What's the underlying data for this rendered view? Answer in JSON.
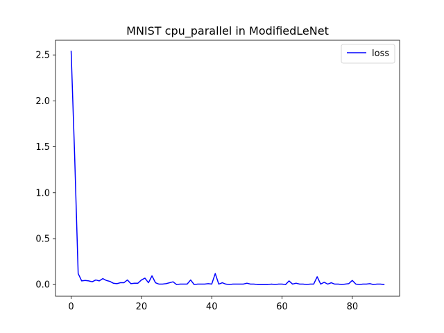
{
  "chart_data": {
    "type": "line",
    "title": "MNIST cpu_parallel in ModifiedLeNet",
    "xlabel": "",
    "ylabel": "",
    "xlim": [
      -4.45,
      93.45
    ],
    "ylim": [
      -0.127,
      2.66
    ],
    "xticks": [
      0,
      20,
      40,
      60,
      80
    ],
    "yticks": [
      0.0,
      0.5,
      1.0,
      1.5,
      2.0,
      2.5
    ],
    "ytick_labels": [
      "0.0",
      "0.5",
      "1.0",
      "1.5",
      "2.0",
      "2.5"
    ],
    "grid": false,
    "legend_position": "top-right",
    "series": [
      {
        "name": "loss",
        "color": "#0000ff",
        "x": [
          0,
          1,
          2,
          3,
          4,
          5,
          6,
          7,
          8,
          9,
          10,
          11,
          12,
          13,
          14,
          15,
          16,
          17,
          18,
          19,
          20,
          21,
          22,
          23,
          24,
          25,
          26,
          27,
          28,
          29,
          30,
          31,
          32,
          33,
          34,
          35,
          36,
          37,
          38,
          39,
          40,
          41,
          42,
          43,
          44,
          45,
          46,
          47,
          48,
          49,
          50,
          51,
          52,
          53,
          54,
          55,
          56,
          57,
          58,
          59,
          60,
          61,
          62,
          63,
          64,
          65,
          66,
          67,
          68,
          69,
          70,
          71,
          72,
          73,
          74,
          75,
          76,
          77,
          78,
          79,
          80,
          81,
          82,
          83,
          84,
          85,
          86,
          87,
          88,
          89
        ],
        "values": [
          2.54,
          1.4,
          0.12,
          0.04,
          0.045,
          0.04,
          0.03,
          0.05,
          0.04,
          0.065,
          0.045,
          0.035,
          0.015,
          0.01,
          0.02,
          0.02,
          0.05,
          0.01,
          0.015,
          0.015,
          0.05,
          0.07,
          0.02,
          0.095,
          0.02,
          0.005,
          0.005,
          0.01,
          0.02,
          0.03,
          0.0,
          0.005,
          0.005,
          0.005,
          0.05,
          0.0,
          0.005,
          0.005,
          0.005,
          0.01,
          0.005,
          0.12,
          0.005,
          0.02,
          0.005,
          0.0,
          0.005,
          0.005,
          0.005,
          0.005,
          0.015,
          0.005,
          0.005,
          0.0,
          0.0,
          0.0,
          0.0,
          0.005,
          0.0,
          0.005,
          0.005,
          0.0,
          0.04,
          0.005,
          0.015,
          0.005,
          0.005,
          0.0,
          0.005,
          0.005,
          0.085,
          0.005,
          0.025,
          0.005,
          0.02,
          0.005,
          0.005,
          0.0,
          0.005,
          0.01,
          0.045,
          0.005,
          0.0,
          0.005,
          0.005,
          0.01,
          0.0,
          0.005,
          0.005,
          0.0
        ]
      }
    ]
  }
}
